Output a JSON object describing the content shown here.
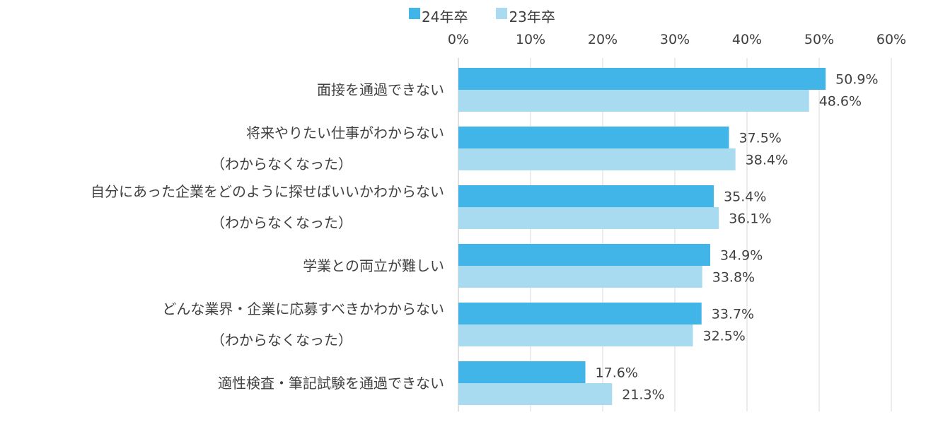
{
  "chart_data": {
    "type": "bar",
    "orientation": "horizontal",
    "categories": [
      [
        "面接を通過できない"
      ],
      [
        "将来やりたい仕事がわからない",
        "（わからなくなった）"
      ],
      [
        "自分にあった企業をどのように探せばいいかわからない",
        "（わからなくなった）"
      ],
      [
        "学業との両立が難しい"
      ],
      [
        "どんな業界・企業に応募すべきかわからない",
        "（わからなくなった）"
      ],
      [
        "適性検査・筆記試験を通過できない"
      ]
    ],
    "series": [
      {
        "name": "24年卒",
        "color": "#41b5e8",
        "values": [
          50.9,
          37.5,
          35.4,
          34.9,
          33.7,
          17.6
        ],
        "labels": [
          "50.9%",
          "37.5%",
          "35.4%",
          "34.9%",
          "33.7%",
          "17.6%"
        ]
      },
      {
        "name": "23年卒",
        "color": "#a9dbf0",
        "values": [
          48.6,
          38.4,
          36.1,
          33.8,
          32.5,
          21.3
        ],
        "labels": [
          "48.6%",
          "38.4%",
          "36.1%",
          "33.8%",
          "32.5%",
          "21.3%"
        ]
      }
    ],
    "xlim": [
      0,
      60
    ],
    "xticks": [
      0,
      10,
      20,
      30,
      40,
      50,
      60
    ],
    "xtick_labels": [
      "0%",
      "10%",
      "20%",
      "30%",
      "40%",
      "50%",
      "60%"
    ],
    "axis_position": "top",
    "grid": true,
    "legend": "top"
  }
}
